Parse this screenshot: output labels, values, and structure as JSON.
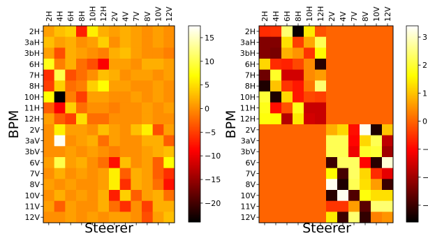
{
  "chart_data": [
    {
      "type": "heatmap",
      "xlabel": "Steerer",
      "ylabel": "BPM",
      "x_tick_labels": [
        "2H",
        "4H",
        "6H",
        "8H",
        "10H",
        "12H",
        "2V",
        "4V",
        "7V",
        "8V",
        "10V",
        "12V"
      ],
      "y_tick_labels": [
        "2H",
        "3aH",
        "3bH",
        "6H",
        "7H",
        "8H",
        "10H",
        "11H",
        "12H",
        "2V",
        "3aV",
        "3bV",
        "6V",
        "7V",
        "8V",
        "10V",
        "11V",
        "12V"
      ],
      "colormap": "hot",
      "colorbar_range": [
        -24,
        17.5
      ],
      "colorbar_ticks": [
        "15",
        "10",
        "5",
        "0",
        "−5",
        "−10",
        "−15",
        "−20"
      ],
      "colorbar_tick_values": [
        15,
        10,
        5,
        0,
        -5,
        -10,
        -15,
        -20
      ],
      "values": [
        [
          1,
          3,
          4,
          -7,
          6,
          2,
          1,
          2,
          1,
          0,
          1,
          0
        ],
        [
          3,
          1,
          2,
          0,
          1,
          4,
          0,
          2,
          1,
          0,
          1,
          0
        ],
        [
          1,
          -4,
          2,
          1,
          0,
          -1,
          2,
          3,
          1,
          0,
          0,
          -1
        ],
        [
          8,
          -1,
          2,
          -2,
          -4,
          -9,
          1,
          1,
          0,
          2,
          2,
          1
        ],
        [
          -6,
          10,
          -4,
          -2,
          0,
          3,
          2,
          0,
          1,
          1,
          0,
          1
        ],
        [
          -5,
          4,
          -2,
          -1,
          4,
          7,
          1,
          1,
          0,
          0,
          1,
          0
        ],
        [
          7,
          -24,
          -1,
          -5,
          1,
          1,
          0,
          0,
          1,
          0,
          1,
          0
        ],
        [
          -3,
          -9,
          4,
          -2,
          0,
          0,
          -1,
          0,
          0,
          1,
          0,
          1
        ],
        [
          1,
          -3,
          -5,
          5,
          -2,
          -2,
          0,
          0,
          0,
          1,
          0,
          0
        ],
        [
          0,
          6,
          1,
          1,
          0,
          3,
          1,
          0,
          3,
          6,
          -4,
          1
        ],
        [
          0,
          17,
          0,
          1,
          2,
          -2,
          1,
          0,
          0,
          2,
          2,
          -3
        ],
        [
          0,
          0,
          1,
          0,
          1,
          0,
          -1,
          0,
          0,
          1,
          2,
          3
        ],
        [
          1,
          10,
          1,
          2,
          0,
          -2,
          -8,
          3,
          0,
          1,
          -3,
          7
        ],
        [
          0,
          2,
          0,
          1,
          0,
          1,
          6,
          -3,
          2,
          1,
          -3,
          -6
        ],
        [
          1,
          0,
          1,
          0,
          0,
          1,
          6,
          -6,
          2,
          1,
          -2,
          -8
        ],
        [
          0,
          2,
          0,
          1,
          0,
          2,
          -7,
          4,
          -3,
          1,
          2,
          -2
        ],
        [
          1,
          -3,
          1,
          0,
          0,
          2,
          -2,
          -6,
          0,
          -5,
          2,
          2
        ],
        [
          0,
          0,
          1,
          0,
          1,
          0,
          1,
          1,
          0,
          -4,
          1,
          3
        ]
      ]
    },
    {
      "type": "heatmap",
      "xlabel": "Steerer",
      "ylabel": "BPM",
      "x_tick_labels": [
        "2H",
        "4H",
        "6H",
        "8H",
        "10H",
        "12H",
        "2V",
        "4V",
        "7V",
        "8V",
        "10V",
        "12V"
      ],
      "y_tick_labels": [
        "2H",
        "3aH",
        "3bH",
        "6H",
        "7H",
        "8H",
        "10H",
        "11H",
        "12H",
        "2V",
        "3aV",
        "3bV",
        "6V",
        "7V",
        "8V",
        "10V",
        "11V",
        "12V"
      ],
      "colormap": "hot",
      "colorbar_range": [
        -3.6,
        3.4
      ],
      "colorbar_ticks": [
        "3",
        "2",
        "1",
        "0",
        "−1",
        "−2",
        "−3"
      ],
      "colorbar_tick_values": [
        3,
        2,
        1,
        0,
        -1,
        -2,
        -3
      ],
      "values": [
        [
          -0.6,
          -0.5,
          2.4,
          -3.5,
          1.4,
          -0.2,
          0,
          0,
          0,
          0,
          0,
          0
        ],
        [
          -2.3,
          -2.3,
          1.3,
          -0.4,
          0.7,
          2.2,
          0,
          0,
          0,
          0,
          0,
          0
        ],
        [
          -2.3,
          -2.4,
          0.8,
          0.5,
          -0.5,
          1.6,
          0,
          0,
          0,
          0,
          0,
          0
        ],
        [
          1.2,
          -0.6,
          -0.7,
          -0.3,
          0.4,
          -3.2,
          0,
          0,
          0,
          0,
          0,
          0
        ],
        [
          -2.5,
          1.9,
          -1.5,
          -1.5,
          0.4,
          0.6,
          0,
          0,
          0,
          0,
          0,
          0
        ],
        [
          -3.3,
          1.0,
          -0.5,
          -0.8,
          0.2,
          2.4,
          0,
          0,
          0,
          0,
          0,
          0
        ],
        [
          2.0,
          -3.3,
          1.2,
          -0.8,
          -0.3,
          -0.4,
          0,
          0,
          0,
          0,
          0,
          0
        ],
        [
          1.8,
          -0.9,
          -0.2,
          1.8,
          -1.6,
          -1.6,
          0,
          0,
          0,
          0,
          0,
          0
        ],
        [
          1.7,
          1.6,
          -1.8,
          1.4,
          -1.5,
          -1.6,
          0,
          0,
          0,
          0,
          0,
          0
        ],
        [
          0,
          0,
          0,
          0,
          0,
          0,
          0.8,
          1.2,
          -0.9,
          3.3,
          -3.3,
          1.0
        ],
        [
          0,
          0,
          0,
          0,
          0,
          0,
          2.2,
          2.2,
          -1.0,
          1.2,
          2.2,
          -1.7
        ],
        [
          0,
          0,
          0,
          0,
          0,
          0,
          2.2,
          2.2,
          -1.2,
          1.9,
          2.0,
          -2.0
        ],
        [
          0,
          0,
          0,
          0,
          0,
          0,
          -3.0,
          2.3,
          2.3,
          -1.0,
          -3.2,
          3.1
        ],
        [
          0,
          0,
          0,
          0,
          0,
          0,
          1.6,
          -2.9,
          2.3,
          1.2,
          -0.6,
          -1.3
        ],
        [
          0,
          0,
          0,
          0,
          0,
          0,
          3.3,
          -3.3,
          2.2,
          1.3,
          0.6,
          -3.0
        ],
        [
          0,
          0,
          0,
          0,
          0,
          0,
          -3.2,
          3.3,
          -2.8,
          1.7,
          1.3,
          1.3
        ],
        [
          0,
          0,
          0,
          0,
          0,
          0,
          -0.5,
          -0.5,
          0.6,
          -2.7,
          2.4,
          2.4
        ],
        [
          0,
          0,
          0,
          0,
          0,
          0,
          1.4,
          -3.0,
          2.4,
          -3.1,
          0.3,
          0.5
        ]
      ]
    }
  ]
}
